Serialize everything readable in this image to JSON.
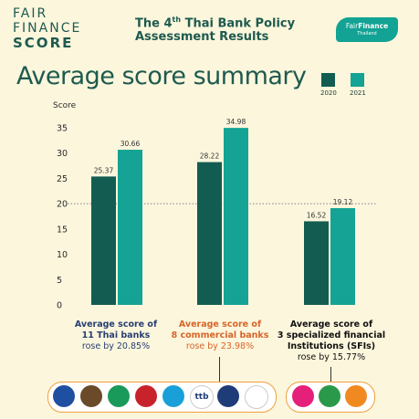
{
  "brand": {
    "fair": "FAIR",
    "finance": "FINANCE",
    "score": "SCORE"
  },
  "header": {
    "title_line1_a": "The 4",
    "title_line1_sup": "th",
    "title_line1_b": " Thai Bank Policy",
    "title_line2": "Assessment Results"
  },
  "badge": {
    "fair": "Fair",
    "finance": "Finance",
    "country": "Thailand"
  },
  "main_title": "Average score summary",
  "colors": {
    "y2020": "#135c52",
    "y2021": "#14a394",
    "background": "#fbf6dc",
    "dotted_line": "#888888"
  },
  "chart_data": {
    "type": "bar",
    "categories": [
      "11 Thai banks",
      "8 commercial banks",
      "3 specialized financial Institutions (SFIs)"
    ],
    "series": [
      {
        "name": "2020",
        "values": [
          25.37,
          28.22,
          16.52
        ]
      },
      {
        "name": "2021",
        "values": [
          30.66,
          34.98,
          19.12
        ]
      }
    ],
    "ylabel": "Score",
    "ylim": [
      0,
      35
    ],
    "yticks": [
      0,
      5,
      10,
      15,
      20,
      25,
      30,
      35
    ],
    "reference_line": 20,
    "legend_position": "top-right"
  },
  "groups": [
    {
      "heading1": "Average score of",
      "heading2": "11 Thai banks",
      "heading3": "",
      "subtext": "rose by 20.85%"
    },
    {
      "heading1": "Average score of",
      "heading2": "8 commercial banks",
      "heading3": "",
      "subtext": "rose by 23.98%"
    },
    {
      "heading1": "Average score of",
      "heading2": "3 specialized financial",
      "heading3": "Institutions (SFIs)",
      "subtext": "rose by 15.77%"
    }
  ],
  "bank_logos": {
    "commercial": [
      {
        "icon": "bangkok-bank-icon",
        "color": "#1f4fa0",
        "text": ""
      },
      {
        "icon": "krungsri-icon",
        "color": "#6b4a2a",
        "text": ""
      },
      {
        "icon": "kbank-icon",
        "color": "#1a9a5a",
        "text": ""
      },
      {
        "icon": "cimb-icon",
        "color": "#c8232b",
        "text": ""
      },
      {
        "icon": "krungthai-icon",
        "color": "#1aa0d8",
        "text": ""
      },
      {
        "icon": "ttb-icon",
        "color": "#ffffff",
        "text": "ttb"
      },
      {
        "icon": "tisco-icon",
        "color": "#1e3c78",
        "text": ""
      },
      {
        "icon": "scb-icon",
        "color": "#ffffff",
        "text": ""
      }
    ],
    "sfi": [
      {
        "icon": "gsb-icon",
        "color": "#e4207b",
        "text": ""
      },
      {
        "icon": "baac-icon",
        "color": "#2a9a4a",
        "text": ""
      },
      {
        "icon": "ghbank-icon",
        "color": "#f08a20",
        "text": ""
      }
    ]
  }
}
